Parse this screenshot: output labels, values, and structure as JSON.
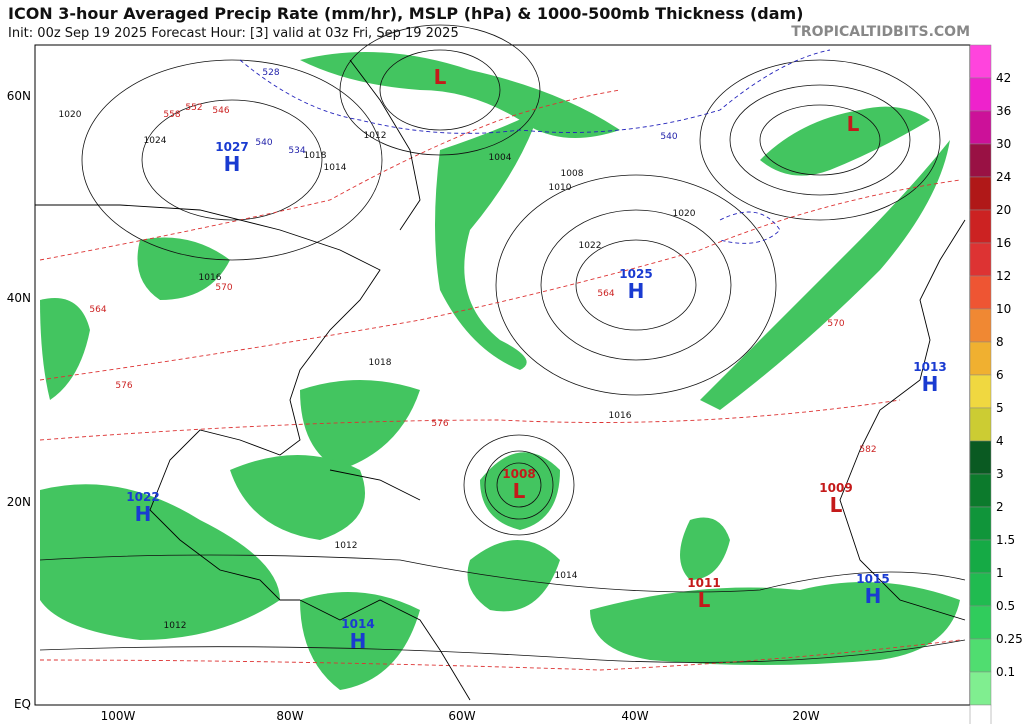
{
  "header": {
    "title": "ICON 3-hour Averaged Precip Rate (mm/hr), MSLP (hPa) & 1000-500mb Thickness (dam)",
    "subtitle": "Init: 00z Sep 19 2025   Forecast Hour: [3]   valid at 03z Fri, Sep 19 2025",
    "site": "TROPICALTIDBITS.COM"
  },
  "axes": {
    "lat_labels": [
      "60N",
      "40N",
      "20N",
      "EQ"
    ],
    "lon_labels": [
      "100W",
      "80W",
      "60W",
      "40W",
      "20W"
    ]
  },
  "colorbar": {
    "ticks": [
      42,
      36,
      30,
      24,
      20,
      16,
      12,
      10,
      8,
      6,
      5,
      4,
      3,
      2,
      1.5,
      1,
      0.5,
      0.25,
      0.1
    ],
    "colors": [
      "#ff44dd",
      "#ee22cc",
      "#cc1199",
      "#991144",
      "#b01818",
      "#cc2222",
      "#dd3333",
      "#ee5533",
      "#f08833",
      "#f0b030",
      "#f0d840",
      "#cccc33",
      "#0a5a22",
      "#0c7a2c",
      "#10953a",
      "#15aa45",
      "#20bb50",
      "#30cc5c",
      "#50dd70",
      "#80ee90",
      "#ffffff"
    ]
  },
  "pressure_centers": [
    {
      "kind": "H",
      "value": "1027"
    },
    {
      "kind": "L",
      "value": ""
    },
    {
      "kind": "L",
      "value": ""
    },
    {
      "kind": "H",
      "value": "1025"
    },
    {
      "kind": "L",
      "value": "1008"
    },
    {
      "kind": "H",
      "value": "1022"
    },
    {
      "kind": "L",
      "value": "1009"
    },
    {
      "kind": "L",
      "value": "1011"
    },
    {
      "kind": "H",
      "value": "1015"
    },
    {
      "kind": "H",
      "value": "1013"
    },
    {
      "kind": "H",
      "value": "1014"
    }
  ],
  "isobar_labels": [
    "1020",
    "1024",
    "1018",
    "1016",
    "1014",
    "1012",
    "1022",
    "1020",
    "1016",
    "1012",
    "1014",
    "1012",
    "1018",
    "1004",
    "1008",
    "1010"
  ],
  "thickness_labels": [
    "552",
    "558",
    "564",
    "570",
    "576",
    "582",
    "546",
    "576",
    "570",
    "564"
  ],
  "thickness_labels_cold": [
    "528",
    "534",
    "540",
    "540"
  ]
}
